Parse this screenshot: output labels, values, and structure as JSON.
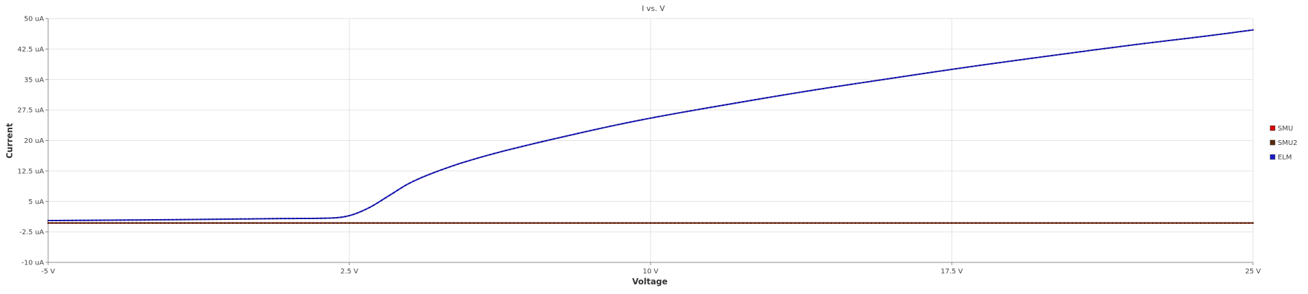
{
  "chart_data": {
    "type": "line",
    "title": "I vs. V",
    "xlabel": "Voltage",
    "ylabel": "Current",
    "x_unit": "V",
    "y_unit": "uA",
    "xlim": [
      -5,
      25
    ],
    "ylim": [
      -10,
      50
    ],
    "x_ticks": [
      -5,
      2.5,
      10,
      17.5,
      25
    ],
    "x_tick_labels": [
      "-5 V",
      "2.5 V",
      "10 V",
      "17.5 V",
      "25 V"
    ],
    "y_ticks": [
      50,
      42.5,
      35,
      27.5,
      20,
      12.5,
      5,
      -2.5,
      -10
    ],
    "y_tick_labels": [
      "50 uA",
      "42.5 uA",
      "35 uA",
      "27.5 uA",
      "20 uA",
      "12.5 uA",
      "5 uA",
      "-2.5 uA",
      "-10 uA"
    ],
    "grid": true,
    "legend_position": "right",
    "series": [
      {
        "name": "SMU",
        "color": "#dd0000",
        "x": [
          -5,
          0,
          5,
          10,
          15,
          20,
          25
        ],
        "y": [
          -0.3,
          -0.3,
          -0.3,
          -0.3,
          -0.3,
          -0.3,
          -0.3
        ]
      },
      {
        "name": "SMU2",
        "color": "#5a2a0a",
        "x": [
          -5,
          0,
          5,
          10,
          15,
          20,
          25
        ],
        "y": [
          -0.3,
          -0.3,
          -0.3,
          -0.3,
          -0.3,
          -0.3,
          -0.3
        ]
      },
      {
        "name": "ELM",
        "color": "#1a1acc",
        "x": [
          -5,
          -2,
          0,
          1,
          2,
          2.5,
          3,
          3.5,
          4,
          5,
          6,
          7,
          8,
          9,
          10,
          12,
          14,
          16,
          18,
          20,
          22,
          24,
          25
        ],
        "y": [
          0.3,
          0.5,
          0.7,
          0.8,
          0.9,
          1.5,
          3.5,
          6.5,
          9.5,
          13.5,
          16.5,
          19.0,
          21.3,
          23.5,
          25.5,
          29.0,
          32.3,
          35.3,
          38.2,
          40.9,
          43.5,
          45.9,
          47.2
        ]
      }
    ]
  }
}
